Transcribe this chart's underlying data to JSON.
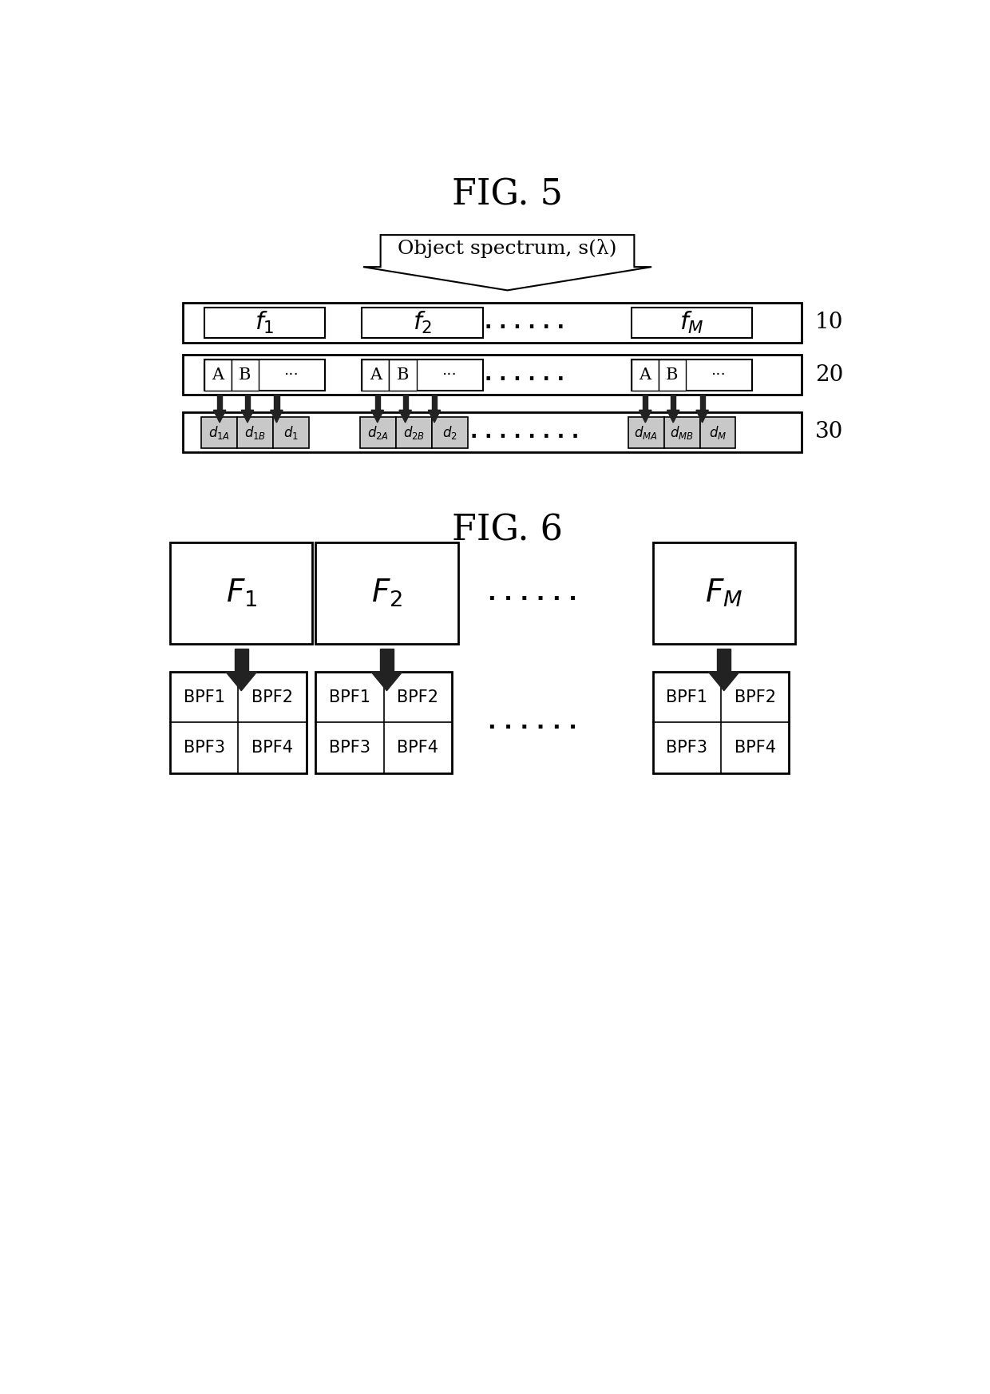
{
  "fig5_title": "FIG. 5",
  "fig6_title": "FIG. 6",
  "background_color": "#ffffff",
  "arrow_spectrum_text": "Object spectrum, s(λ)",
  "row10_label": "10",
  "row20_label": "20",
  "row30_label": "30",
  "f_labels": [
    "$f_1$",
    "$f_2$",
    "$f_M$"
  ],
  "F_labels": [
    "$F_1$",
    "$F_2$",
    "$F_M$"
  ],
  "bpf_grid_top": [
    "BPF1",
    "BPF2"
  ],
  "bpf_grid_bot": [
    "BPF3",
    "BPF4"
  ],
  "dots_short": ". . . . . .",
  "dots_long": ". . . . . . . .",
  "gray_color": "#c8c8c8"
}
